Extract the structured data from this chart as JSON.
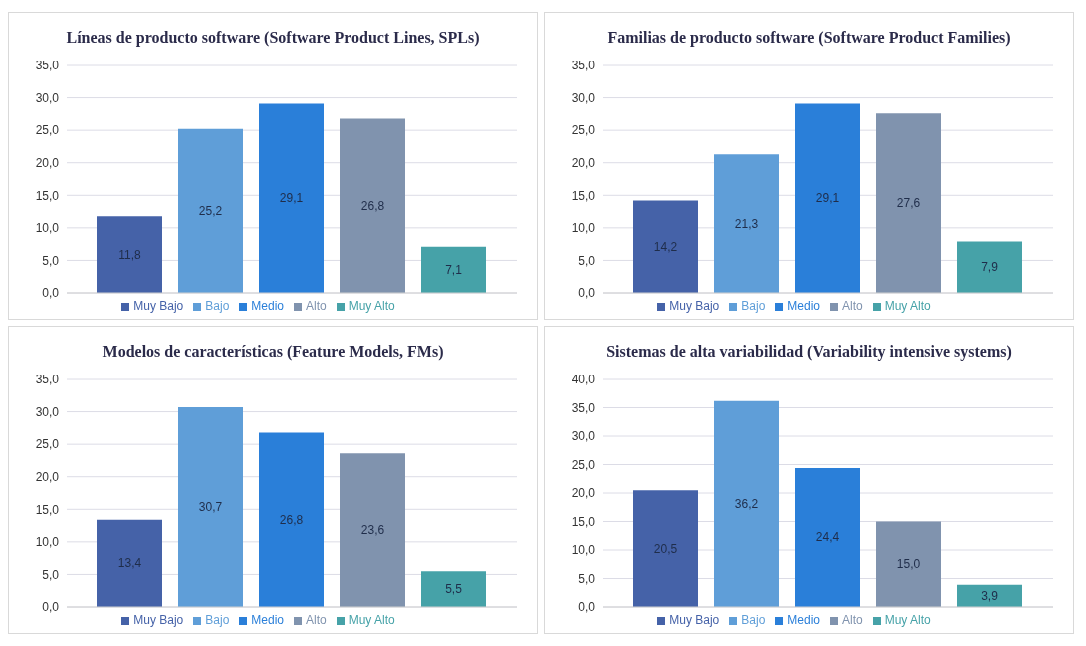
{
  "chart_data": [
    {
      "type": "bar",
      "title": "Líneas de producto software (Software Product Lines, SPLs)",
      "categories": [
        null
      ],
      "series": [
        {
          "name": "Muy Bajo",
          "color": "#4562a8",
          "values": [
            11.8
          ],
          "value_labels": [
            "11,8"
          ]
        },
        {
          "name": "Bajo",
          "color": "#5f9ed8",
          "values": [
            25.2
          ],
          "value_labels": [
            "25,2"
          ]
        },
        {
          "name": "Medio",
          "color": "#2a7fd9",
          "values": [
            29.1
          ],
          "value_labels": [
            "29,1"
          ]
        },
        {
          "name": "Alto",
          "color": "#8093ae",
          "values": [
            26.8
          ],
          "value_labels": [
            "26,8"
          ]
        },
        {
          "name": "Muy Alto",
          "color": "#46a2a8",
          "values": [
            7.1
          ],
          "value_labels": [
            "7,1"
          ]
        }
      ],
      "ylim": [
        0,
        35
      ],
      "yticks": [
        {
          "value": 0,
          "label": "0,0"
        },
        {
          "value": 5,
          "label": "5,0"
        },
        {
          "value": 10,
          "label": "10,0"
        },
        {
          "value": 15,
          "label": "15,0"
        },
        {
          "value": 20,
          "label": "20,0"
        },
        {
          "value": 25,
          "label": "25,0"
        },
        {
          "value": 30,
          "label": "30,0"
        },
        {
          "value": 35,
          "label": "35,0"
        }
      ],
      "grid": "y",
      "legend": "bottom",
      "tick_labels": "y"
    },
    {
      "type": "bar",
      "title": "Familias de producto software (Software Product Families)",
      "categories": [
        null
      ],
      "series": [
        {
          "name": "Muy Bajo",
          "color": "#4562a8",
          "values": [
            14.2
          ],
          "value_labels": [
            "14,2"
          ]
        },
        {
          "name": "Bajo",
          "color": "#5f9ed8",
          "values": [
            21.3
          ],
          "value_labels": [
            "21,3"
          ]
        },
        {
          "name": "Medio",
          "color": "#2a7fd9",
          "values": [
            29.1
          ],
          "value_labels": [
            "29,1"
          ]
        },
        {
          "name": "Alto",
          "color": "#8093ae",
          "values": [
            27.6
          ],
          "value_labels": [
            "27,6"
          ]
        },
        {
          "name": "Muy Alto",
          "color": "#46a2a8",
          "values": [
            7.9
          ],
          "value_labels": [
            "7,9"
          ]
        }
      ],
      "ylim": [
        0,
        35
      ],
      "yticks": [
        {
          "value": 0,
          "label": "0,0"
        },
        {
          "value": 5,
          "label": "5,0"
        },
        {
          "value": 10,
          "label": "10,0"
        },
        {
          "value": 15,
          "label": "15,0"
        },
        {
          "value": 20,
          "label": "20,0"
        },
        {
          "value": 25,
          "label": "25,0"
        },
        {
          "value": 30,
          "label": "30,0"
        },
        {
          "value": 35,
          "label": "35,0"
        }
      ],
      "grid": "y",
      "legend": "bottom",
      "tick_labels": "y"
    },
    {
      "type": "bar",
      "title": "Modelos de características (Feature Models, FMs)",
      "categories": [
        null
      ],
      "series": [
        {
          "name": "Muy Bajo",
          "color": "#4562a8",
          "values": [
            13.4
          ],
          "value_labels": [
            "13,4"
          ]
        },
        {
          "name": "Bajo",
          "color": "#5f9ed8",
          "values": [
            30.7
          ],
          "value_labels": [
            "30,7"
          ]
        },
        {
          "name": "Medio",
          "color": "#2a7fd9",
          "values": [
            26.8
          ],
          "value_labels": [
            "26,8"
          ]
        },
        {
          "name": "Alto",
          "color": "#8093ae",
          "values": [
            23.6
          ],
          "value_labels": [
            "23,6"
          ]
        },
        {
          "name": "Muy Alto",
          "color": "#46a2a8",
          "values": [
            5.5
          ],
          "value_labels": [
            "5,5"
          ]
        }
      ],
      "ylim": [
        0,
        35
      ],
      "yticks": [
        {
          "value": 0,
          "label": "0,0"
        },
        {
          "value": 5,
          "label": "5,0"
        },
        {
          "value": 10,
          "label": "10,0"
        },
        {
          "value": 15,
          "label": "15,0"
        },
        {
          "value": 20,
          "label": "20,0"
        },
        {
          "value": 25,
          "label": "25,0"
        },
        {
          "value": 30,
          "label": "30,0"
        },
        {
          "value": 35,
          "label": "35,0"
        }
      ],
      "grid": "y",
      "legend": "bottom",
      "tick_labels": "y"
    },
    {
      "type": "bar",
      "title": "Sistemas de alta variabilidad (Variability intensive systems)",
      "categories": [
        null
      ],
      "series": [
        {
          "name": "Muy Bajo",
          "color": "#4562a8",
          "values": [
            20.5
          ],
          "value_labels": [
            "20,5"
          ]
        },
        {
          "name": "Bajo",
          "color": "#5f9ed8",
          "values": [
            36.2
          ],
          "value_labels": [
            "36,2"
          ]
        },
        {
          "name": "Medio",
          "color": "#2a7fd9",
          "values": [
            24.4
          ],
          "value_labels": [
            "24,4"
          ]
        },
        {
          "name": "Alto",
          "color": "#8093ae",
          "values": [
            15.0
          ],
          "value_labels": [
            "15,0"
          ]
        },
        {
          "name": "Muy Alto",
          "color": "#46a2a8",
          "values": [
            3.9
          ],
          "value_labels": [
            "3,9"
          ]
        }
      ],
      "ylim": [
        0,
        40
      ],
      "yticks": [
        {
          "value": 0,
          "label": "0,0"
        },
        {
          "value": 5,
          "label": "5,0"
        },
        {
          "value": 10,
          "label": "10,0"
        },
        {
          "value": 15,
          "label": "15,0"
        },
        {
          "value": 20,
          "label": "20,0"
        },
        {
          "value": 25,
          "label": "25,0"
        },
        {
          "value": 30,
          "label": "30,0"
        },
        {
          "value": 35,
          "label": "35,0"
        },
        {
          "value": 40,
          "label": "40,0"
        }
      ],
      "grid": "y",
      "legend": "bottom",
      "tick_labels": "y"
    }
  ]
}
